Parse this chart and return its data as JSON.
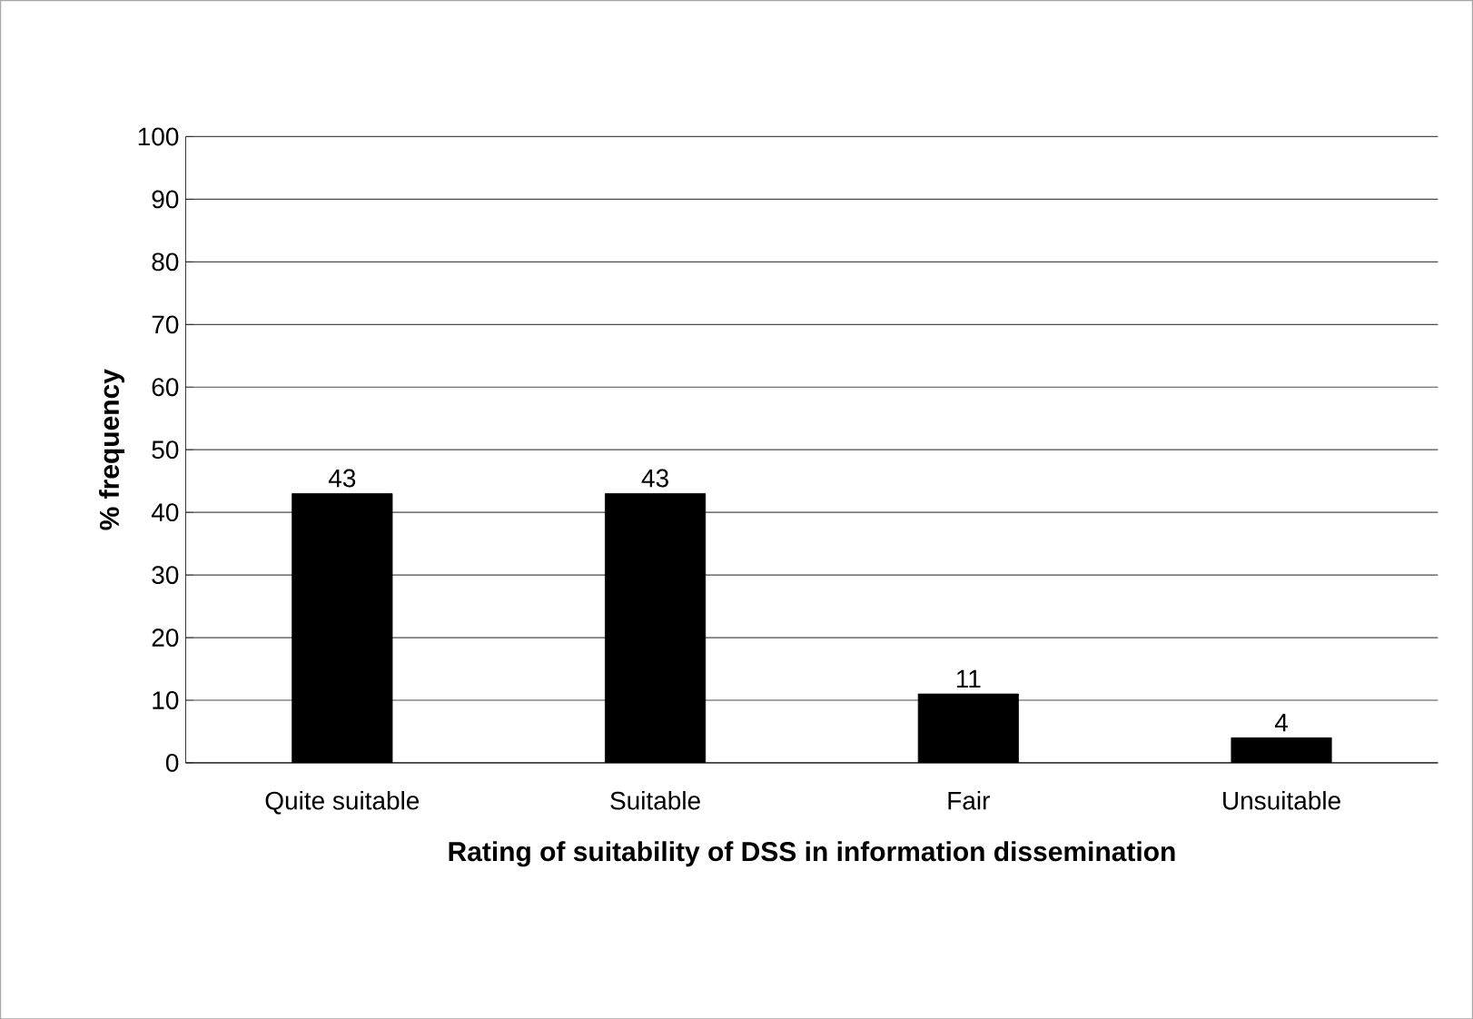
{
  "chart_data": {
    "type": "bar",
    "xlabel": "Rating of suitability of DSS in information dissemination",
    "ylabel": "% frequency",
    "categories": [
      "Quite suitable",
      "Suitable",
      "Fair",
      "Unsuitable"
    ],
    "values": [
      43,
      43,
      11,
      4
    ],
    "color": "#000000",
    "ylim": [
      0,
      100
    ],
    "yticks": [
      0,
      10,
      20,
      30,
      40,
      50,
      60,
      70,
      80,
      90,
      100
    ],
    "grid": "y",
    "data_labels": true
  }
}
